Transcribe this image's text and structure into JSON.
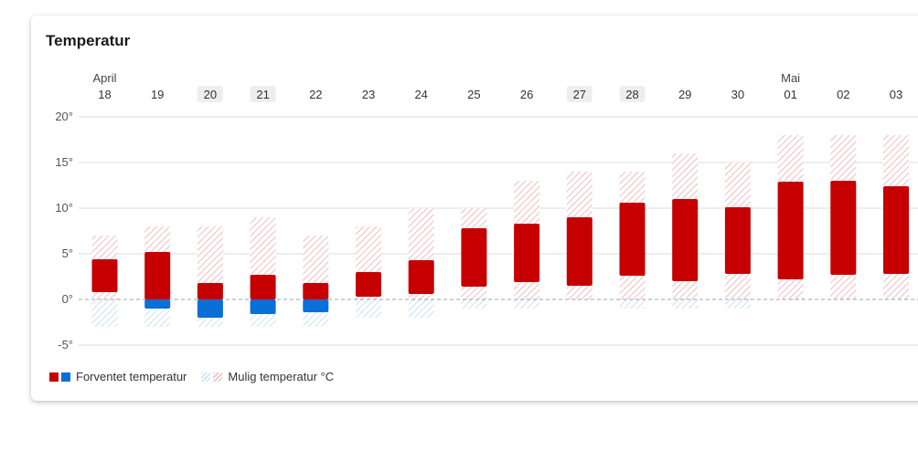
{
  "card": {
    "title": "Temperatur"
  },
  "legend": {
    "expected_label": "Forventet temperatur",
    "possible_label": "Mulig temperatur °C"
  },
  "colors": {
    "expected_warm": "#c60000",
    "expected_cold": "#0a6fd6",
    "possible_warm_hatch": "#f2c2c2",
    "possible_cold_hatch": "#cfe3f5",
    "highlight_day_bg": "#eceef0"
  },
  "chart_data": {
    "type": "bar",
    "title": "Temperatur",
    "xlabel": "",
    "ylabel": "",
    "ylim": [
      -5,
      20
    ],
    "y_ticks": [
      "20°",
      "15°",
      "10°",
      "5°",
      "0°",
      "-5°"
    ],
    "y_tick_values": [
      20,
      15,
      10,
      5,
      0,
      -5
    ],
    "grid": true,
    "legend_position": "bottom-left",
    "month_labels": [
      {
        "label": "April",
        "category": "18"
      },
      {
        "label": "Mai",
        "category": "01"
      }
    ],
    "categories": [
      "18",
      "19",
      "20",
      "21",
      "22",
      "23",
      "24",
      "25",
      "26",
      "27",
      "28",
      "29",
      "30",
      "01",
      "02",
      "03"
    ],
    "highlighted_categories": [
      "20",
      "21",
      "27",
      "28"
    ],
    "series": [
      {
        "name": "Forventet temperatur",
        "ranges": [
          [
            0.8,
            4.4
          ],
          [
            -1.0,
            5.2
          ],
          [
            -2.0,
            1.8
          ],
          [
            -1.6,
            2.7
          ],
          [
            -1.4,
            1.8
          ],
          [
            0.3,
            3.0
          ],
          [
            0.6,
            4.3
          ],
          [
            1.4,
            7.8
          ],
          [
            1.9,
            8.3
          ],
          [
            1.5,
            9.0
          ],
          [
            2.6,
            10.6
          ],
          [
            2.0,
            11.0
          ],
          [
            2.8,
            10.1
          ],
          [
            2.2,
            12.9
          ],
          [
            2.7,
            13.0
          ],
          [
            2.8,
            12.4
          ]
        ]
      },
      {
        "name": "Mulig temperatur °C",
        "ranges": [
          [
            -3.0,
            7.0
          ],
          [
            -3.0,
            8.0
          ],
          [
            -3.0,
            8.0
          ],
          [
            -3.0,
            9.0
          ],
          [
            -3.0,
            7.0
          ],
          [
            -2.0,
            8.0
          ],
          [
            -2.0,
            10.0
          ],
          [
            -1.0,
            10.0
          ],
          [
            -1.0,
            13.0
          ],
          [
            0.0,
            14.0
          ],
          [
            -1.0,
            14.0
          ],
          [
            -1.0,
            16.0
          ],
          [
            -1.0,
            15.0
          ],
          [
            0.0,
            18.0
          ],
          [
            0.0,
            18.0
          ],
          [
            0.0,
            18.0
          ]
        ]
      }
    ]
  }
}
